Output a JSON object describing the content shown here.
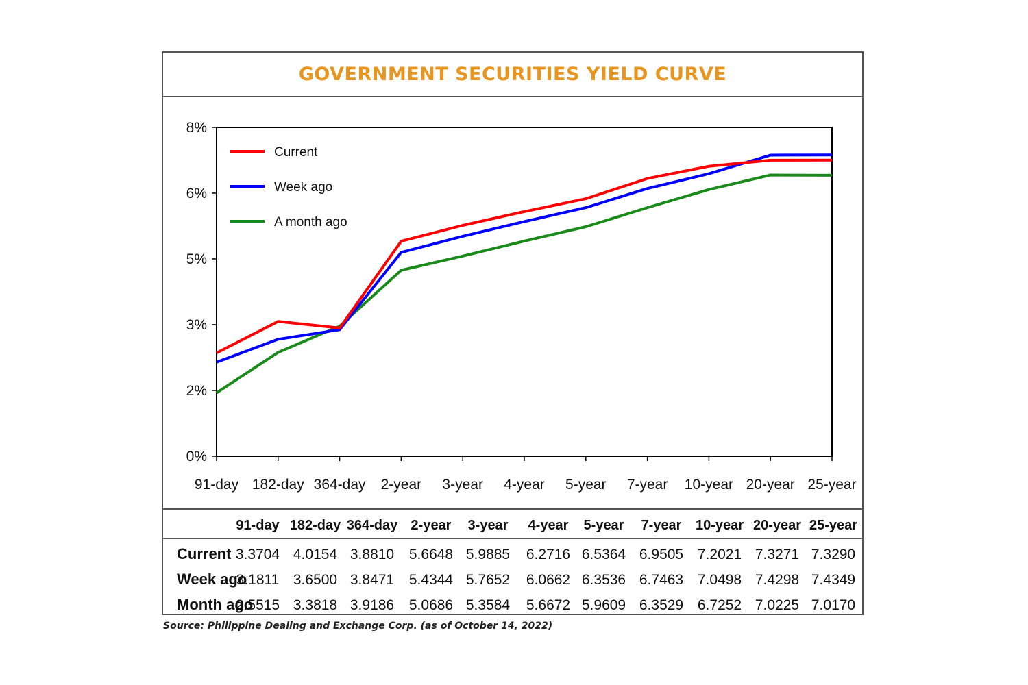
{
  "chart_data": {
    "type": "line",
    "title": "GOVERNMENT SECURITIES YIELD CURVE",
    "categories": [
      "91-day",
      "182-day",
      "364-day",
      "2-year",
      "3-year",
      "4-year",
      "5-year",
      "7-year",
      "10-year",
      "20-year",
      "25-year"
    ],
    "y_tick_labels": [
      "0%",
      "2%",
      "3%",
      "5%",
      "6%",
      "8%"
    ],
    "ylim": [
      1.25,
      8.0
    ],
    "grid": false,
    "legend_placement": "top-left",
    "series": [
      {
        "name": "Current",
        "color": "#ff0000",
        "values": [
          3.3704,
          4.0154,
          3.881,
          5.6648,
          5.9885,
          6.2716,
          6.5364,
          6.9505,
          7.2021,
          7.3271,
          7.329
        ]
      },
      {
        "name": "Week ago",
        "color": "#0000ff",
        "values": [
          3.1811,
          3.65,
          3.8471,
          5.4344,
          5.7652,
          6.0662,
          6.3536,
          6.7463,
          7.0498,
          7.4298,
          7.4349
        ]
      },
      {
        "name": "A month ago",
        "color": "#1a8a1a",
        "values": [
          2.5515,
          3.3818,
          3.9186,
          5.0686,
          5.3584,
          5.6672,
          5.9609,
          6.3529,
          6.7252,
          7.0225,
          7.017
        ]
      }
    ]
  },
  "table": {
    "columns": [
      "91-day",
      "182-day",
      "364-day",
      "2-year",
      "3-year",
      "4-year",
      "5-year",
      "7-year",
      "10-year",
      "20-year",
      "25-year"
    ],
    "rows": [
      {
        "label": "Current",
        "values": [
          "3.3704",
          "4.0154",
          "3.8810",
          "5.6648",
          "5.9885",
          "6.2716",
          "6.5364",
          "6.9505",
          "7.2021",
          "7.3271",
          "7.3290"
        ]
      },
      {
        "label": "Week ago",
        "values": [
          "3.1811",
          "3.6500",
          "3.8471",
          "5.4344",
          "5.7652",
          "6.0662",
          "6.3536",
          "6.7463",
          "7.0498",
          "7.4298",
          "7.4349"
        ]
      },
      {
        "label": "Month ago",
        "values": [
          "2.5515",
          "3.3818",
          "3.9186",
          "5.0686",
          "5.3584",
          "5.6672",
          "5.9609",
          "6.3529",
          "6.7252",
          "7.0225",
          "7.0170"
        ]
      }
    ]
  },
  "source": "Source: Philippine Dealing and Exchange Corp. (as of October 14, 2022)"
}
